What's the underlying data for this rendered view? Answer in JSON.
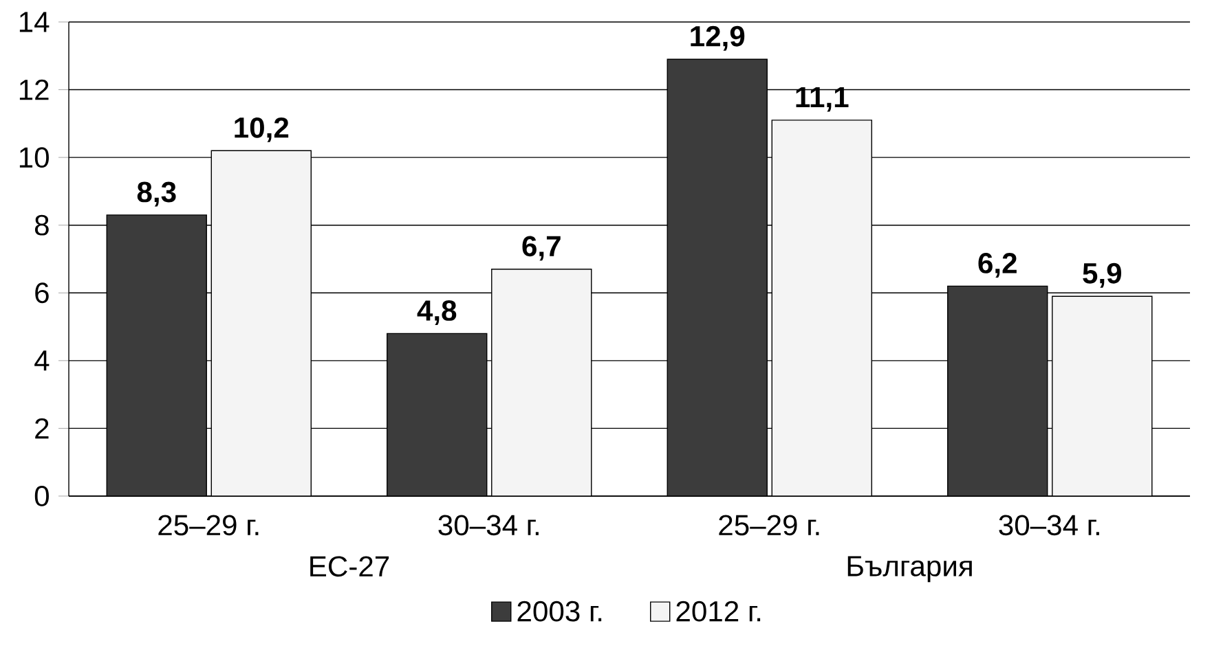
{
  "chart_data": {
    "type": "bar",
    "categories": [
      "25–29 г.",
      "30–34 г.",
      "25–29 г.",
      "30–34 г."
    ],
    "series": [
      {
        "name": "2003 г.",
        "color": "#3c3c3c",
        "values": [
          8.3,
          4.8,
          12.9,
          6.2
        ],
        "value_labels": [
          "8,3",
          "4,8",
          "12,9",
          "6,2"
        ]
      },
      {
        "name": "2012 г.",
        "color": "#f4f4f4",
        "values": [
          10.2,
          6.7,
          11.1,
          5.9
        ],
        "value_labels": [
          "10,2",
          "6,7",
          "11,1",
          "5,9"
        ]
      }
    ],
    "annotations": [
      "ЕС-27",
      "България"
    ],
    "ylim": [
      0,
      14
    ],
    "yticks": [
      0,
      2,
      4,
      6,
      8,
      10,
      12,
      14
    ],
    "grid": "y",
    "legend": "bottom"
  }
}
